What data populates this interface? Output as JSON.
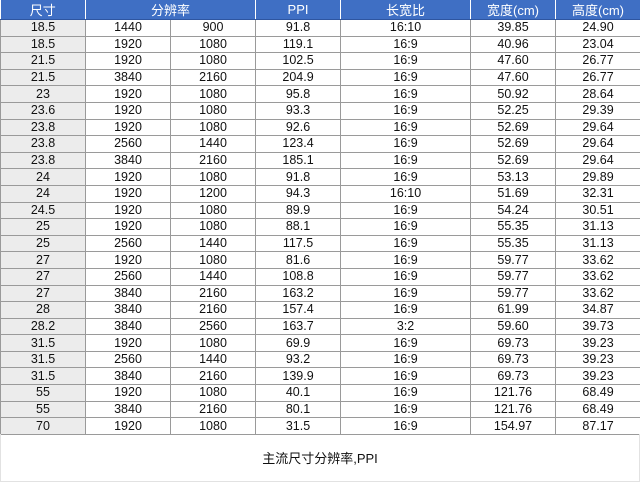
{
  "header": {
    "size": "尺寸",
    "resolution": "分辨率",
    "ppi": "PPI",
    "aspect": "长宽比",
    "width": "宽度(cm)",
    "height": "高度(cm)"
  },
  "rows": [
    [
      "18.5",
      "1440",
      "900",
      "91.8",
      "16:10",
      "39.85",
      "24.90"
    ],
    [
      "18.5",
      "1920",
      "1080",
      "119.1",
      "16:9",
      "40.96",
      "23.04"
    ],
    [
      "21.5",
      "1920",
      "1080",
      "102.5",
      "16:9",
      "47.60",
      "26.77"
    ],
    [
      "21.5",
      "3840",
      "2160",
      "204.9",
      "16:9",
      "47.60",
      "26.77"
    ],
    [
      "23",
      "1920",
      "1080",
      "95.8",
      "16:9",
      "50.92",
      "28.64"
    ],
    [
      "23.6",
      "1920",
      "1080",
      "93.3",
      "16:9",
      "52.25",
      "29.39"
    ],
    [
      "23.8",
      "1920",
      "1080",
      "92.6",
      "16:9",
      "52.69",
      "29.64"
    ],
    [
      "23.8",
      "2560",
      "1440",
      "123.4",
      "16:9",
      "52.69",
      "29.64"
    ],
    [
      "23.8",
      "3840",
      "2160",
      "185.1",
      "16:9",
      "52.69",
      "29.64"
    ],
    [
      "24",
      "1920",
      "1080",
      "91.8",
      "16:9",
      "53.13",
      "29.89"
    ],
    [
      "24",
      "1920",
      "1200",
      "94.3",
      "16:10",
      "51.69",
      "32.31"
    ],
    [
      "24.5",
      "1920",
      "1080",
      "89.9",
      "16:9",
      "54.24",
      "30.51"
    ],
    [
      "25",
      "1920",
      "1080",
      "88.1",
      "16:9",
      "55.35",
      "31.13"
    ],
    [
      "25",
      "2560",
      "1440",
      "117.5",
      "16:9",
      "55.35",
      "31.13"
    ],
    [
      "27",
      "1920",
      "1080",
      "81.6",
      "16:9",
      "59.77",
      "33.62"
    ],
    [
      "27",
      "2560",
      "1440",
      "108.8",
      "16:9",
      "59.77",
      "33.62"
    ],
    [
      "27",
      "3840",
      "2160",
      "163.2",
      "16:9",
      "59.77",
      "33.62"
    ],
    [
      "28",
      "3840",
      "2160",
      "157.4",
      "16:9",
      "61.99",
      "34.87"
    ],
    [
      "28.2",
      "3840",
      "2560",
      "163.7",
      "3:2",
      "59.60",
      "39.73"
    ],
    [
      "31.5",
      "1920",
      "1080",
      "69.9",
      "16:9",
      "69.73",
      "39.23"
    ],
    [
      "31.5",
      "2560",
      "1440",
      "93.2",
      "16:9",
      "69.73",
      "39.23"
    ],
    [
      "31.5",
      "3840",
      "2160",
      "139.9",
      "16:9",
      "69.73",
      "39.23"
    ],
    [
      "55",
      "1920",
      "1080",
      "40.1",
      "16:9",
      "121.76",
      "68.49"
    ],
    [
      "55",
      "3840",
      "2160",
      "80.1",
      "16:9",
      "121.76",
      "68.49"
    ],
    [
      "70",
      "1920",
      "1080",
      "31.5",
      "16:9",
      "154.97",
      "87.17"
    ]
  ],
  "caption": "主流尺寸分辨率,PPI",
  "colors": {
    "header_bg": "#3f6fc4",
    "first_col_bg": "#ececec"
  }
}
